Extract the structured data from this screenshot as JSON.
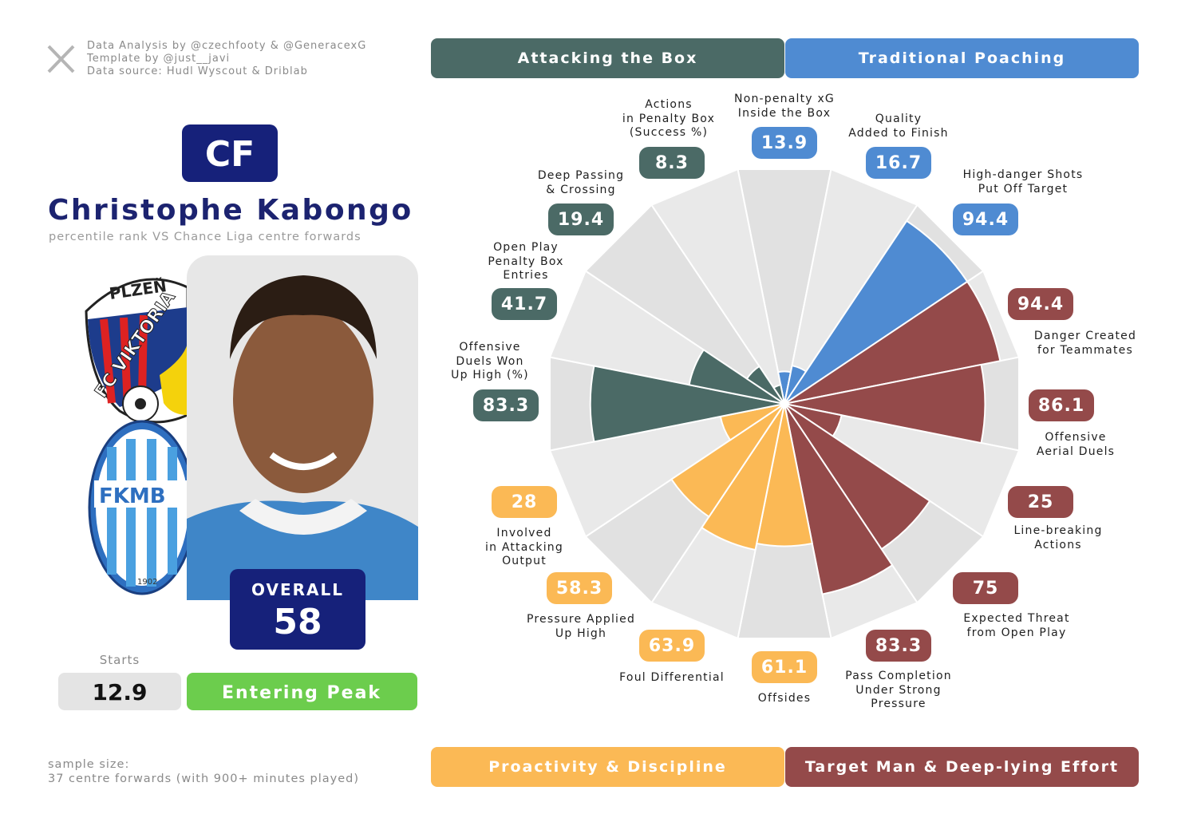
{
  "credits": [
    "Data Analysis by @czechfooty & @GeneracexG",
    "Template by @just__javi",
    "Data source: Hudl Wyscout & Driblab"
  ],
  "player": {
    "position": "CF",
    "name": "Christophe Kabongo",
    "subtitle": "percentile rank VS Chance Liga centre forwards",
    "overall_label": "OVERALL",
    "overall": 58,
    "starts_label": "Starts",
    "starts": 12.9,
    "status": "Entering Peak"
  },
  "logos": {
    "club1_top": "PLZEŇ",
    "club1_main": "FC VIKTORIA",
    "club2_main": "FKMB",
    "club2_year": "1902"
  },
  "sample": [
    "sample size:",
    "37 centre forwards (with 900+ minutes played)"
  ],
  "chart_data": {
    "type": "pizza",
    "rlim": [
      0,
      100
    ],
    "groups": [
      {
        "name": "Attacking the Box",
        "color": "#4b6a66"
      },
      {
        "name": "Traditional Poaching",
        "color": "#4f8bd2"
      },
      {
        "name": "Proactivity & Discipline",
        "color": "#fbb955"
      },
      {
        "name": "Target Man & Deep-lying Effort",
        "color": "#944a4a"
      }
    ],
    "categories": [
      "Non-penalty xG\nInside the Box",
      "Quality\nAdded to Finish",
      "High-danger Shots\nPut Off Target",
      "Danger Created\nfor Teammates",
      "Offensive\nAerial Duels",
      "Line-breaking\nActions",
      "Expected Threat\nfrom Open Play",
      "Pass Completion\nUnder Strong\nPressure",
      "Offsides",
      "Foul Differential",
      "Pressure Applied\nUp High",
      "Involved\nin Attacking\nOutput",
      "Offensive\nDuels Won\nUp High (%)",
      "Open Play\nPenalty Box\nEntries",
      "Deep Passing\n& Crossing",
      "Actions\nin Penalty Box\n(Success %)"
    ],
    "values": [
      13.9,
      16.7,
      94.4,
      94.4,
      86.1,
      25,
      75,
      83.3,
      61.1,
      63.9,
      58.3,
      28,
      83.3,
      41.7,
      19.4,
      8.3
    ],
    "colors": [
      "#4f8bd2",
      "#4f8bd2",
      "#4f8bd2",
      "#944a4a",
      "#944a4a",
      "#944a4a",
      "#944a4a",
      "#944a4a",
      "#fbb955",
      "#fbb955",
      "#fbb955",
      "#fbb955",
      "#4b6a66",
      "#4b6a66",
      "#4b6a66",
      "#4b6a66"
    ]
  }
}
